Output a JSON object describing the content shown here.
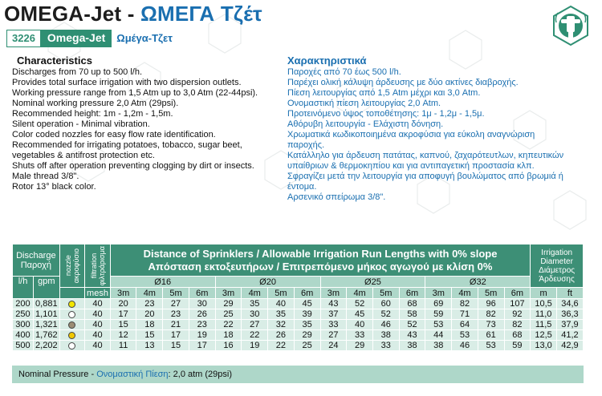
{
  "header": {
    "title_en": "OMEGA-Jet",
    "title_sep": " - ",
    "title_gr": "ΩΜΕΓΑ Τζέτ",
    "code": "3226",
    "product_en": "Omega-Jet",
    "product_gr": "Ωμέγα-Τζετ"
  },
  "colors": {
    "green": "#3d8f76",
    "light_green": "#aed7c9",
    "greek_blue": "#1a6fb0"
  },
  "characteristics_en": {
    "heading": "Characteristics",
    "lines": [
      "Discharges  from 70 up to 500 l/h.",
      "Provides total surface irrigation with two dispersion outlets.",
      "Working pressure range from 1,5 Atm up to 3,0 Atm (22-44psi).",
      "Nominal working pressure 2,0 Atm (29psi).",
      "Recommended height: 1m - 1,2m - 1,5m.",
      "Silent operation - Minimal vibration.",
      "Color coded nozzles for easy flow rate identification.",
      "Recommended for irrigating potatoes, tobacco, sugar beet,",
      "vegetables & antifrost protection etc.",
      "Shuts off after operation preventing clogging by dirt or insects.",
      "Male thread 3/8\".",
      "Rotor 13° black color."
    ]
  },
  "characteristics_gr": {
    "heading": "Χαρακτηριστικά",
    "lines": [
      "Παροχές από 70 έως 500 l/h.",
      "Παρέχει ολική κάλυψη άρδευσης με δύο ακτίνες διαβροχής.",
      "Πίεση λειτουργίας από 1,5 Atm μέχρι και 3,0 Atm.",
      "Ονομαστική πίεση λειτουργίας  2,0 Atm.",
      "Προτεινόμενο ύψος τοποθέτησης: 1μ - 1,2μ - 1,5μ.",
      "Αθόρυβη λειτουργία - Ελάχιστη δόνηση.",
      "Χρωματικά κωδικοποιημένα ακροφύσια για εύκολη αναγνώριση",
      "παροχής.",
      "Κατάλληλο για άρδευση πατάτας, καπνού, ζαχαρότευτλων, κηπευτικών",
      "υπαίθριων & θερμοκηπίου και για αντιπαγετική προστασία κλπ.",
      "Σφραγίζει μετά την λειτουργία για αποφυγή βουλώματος από βρωμιά ή",
      "έντομα.",
      "Αρσενικό σπείρωμα 3/8\"."
    ]
  },
  "table": {
    "discharge_label": "Discharge",
    "discharge_label_gr": "Παροχή",
    "nozzle_label": "nozzle",
    "nozzle_label_gr": "ακροφύσιο",
    "filtration_label": "filtration",
    "filtration_label_gr": "φιλτράρισμα",
    "title_en": "Distance of Sprinklers / Allowable Irrigation Run Lengths with 0% slope",
    "title_gr": "Απόσταση εκτοξευτήρων / Επιτρεπόμενο μήκος αγωγού με κλίση 0%",
    "irrigation_label": "Irrigation",
    "diameter_label": "Diameter",
    "diameter_label_gr": "Διάμετρος",
    "irrigation_label_gr": "Άρδευσης",
    "unit_lh": "l/h",
    "unit_gpm": "gpm",
    "unit_mesh": "mesh",
    "unit_m": "m",
    "unit_ft": "ft",
    "pipe_groups": [
      "Ø16",
      "Ø20",
      "Ø25",
      "Ø32"
    ],
    "distances": [
      "3m",
      "4m",
      "5m",
      "6m"
    ],
    "rows": [
      {
        "lh": "200",
        "gpm": "0,881",
        "nozzle_color": "#f2e600",
        "mesh": "40",
        "d16": [
          "20",
          "23",
          "27",
          "30"
        ],
        "d20": [
          "29",
          "35",
          "40",
          "45"
        ],
        "d25": [
          "43",
          "52",
          "60",
          "68"
        ],
        "d32": [
          "69",
          "82",
          "96",
          "107"
        ],
        "m": "10,5",
        "ft": "34,6"
      },
      {
        "lh": "250",
        "gpm": "1,101",
        "nozzle_color": "#ffffff",
        "mesh": "40",
        "d16": [
          "17",
          "20",
          "23",
          "26"
        ],
        "d20": [
          "25",
          "30",
          "35",
          "39"
        ],
        "d25": [
          "37",
          "45",
          "52",
          "58"
        ],
        "d32": [
          "59",
          "71",
          "82",
          "92"
        ],
        "m": "11,0",
        "ft": "36,3"
      },
      {
        "lh": "300",
        "gpm": "1,321",
        "nozzle_color": "#9b8d74",
        "mesh": "40",
        "d16": [
          "15",
          "18",
          "21",
          "23"
        ],
        "d20": [
          "22",
          "27",
          "32",
          "35"
        ],
        "d25": [
          "33",
          "40",
          "46",
          "52"
        ],
        "d32": [
          "53",
          "64",
          "73",
          "82"
        ],
        "m": "11,5",
        "ft": "37,9"
      },
      {
        "lh": "400",
        "gpm": "1,762",
        "nozzle_color": "#f0c800",
        "mesh": "40",
        "d16": [
          "12",
          "15",
          "17",
          "19"
        ],
        "d20": [
          "18",
          "22",
          "26",
          "29"
        ],
        "d25": [
          "27",
          "33",
          "38",
          "43"
        ],
        "d32": [
          "44",
          "53",
          "61",
          "68"
        ],
        "m": "12,5",
        "ft": "41,2"
      },
      {
        "lh": "500",
        "gpm": "2,202",
        "nozzle_color": "#ffffff",
        "mesh": "40",
        "d16": [
          "11",
          "13",
          "15",
          "17"
        ],
        "d20": [
          "16",
          "19",
          "22",
          "25"
        ],
        "d25": [
          "24",
          "29",
          "33",
          "38"
        ],
        "d32": [
          "38",
          "46",
          "53",
          "59"
        ],
        "m": "13,0",
        "ft": "42,9"
      }
    ]
  },
  "footer": {
    "label_en": "Nominal Pressure - ",
    "label_gr": "Ονομαστική Πίεση",
    "value": ": 2,0 atm (29psi)"
  }
}
